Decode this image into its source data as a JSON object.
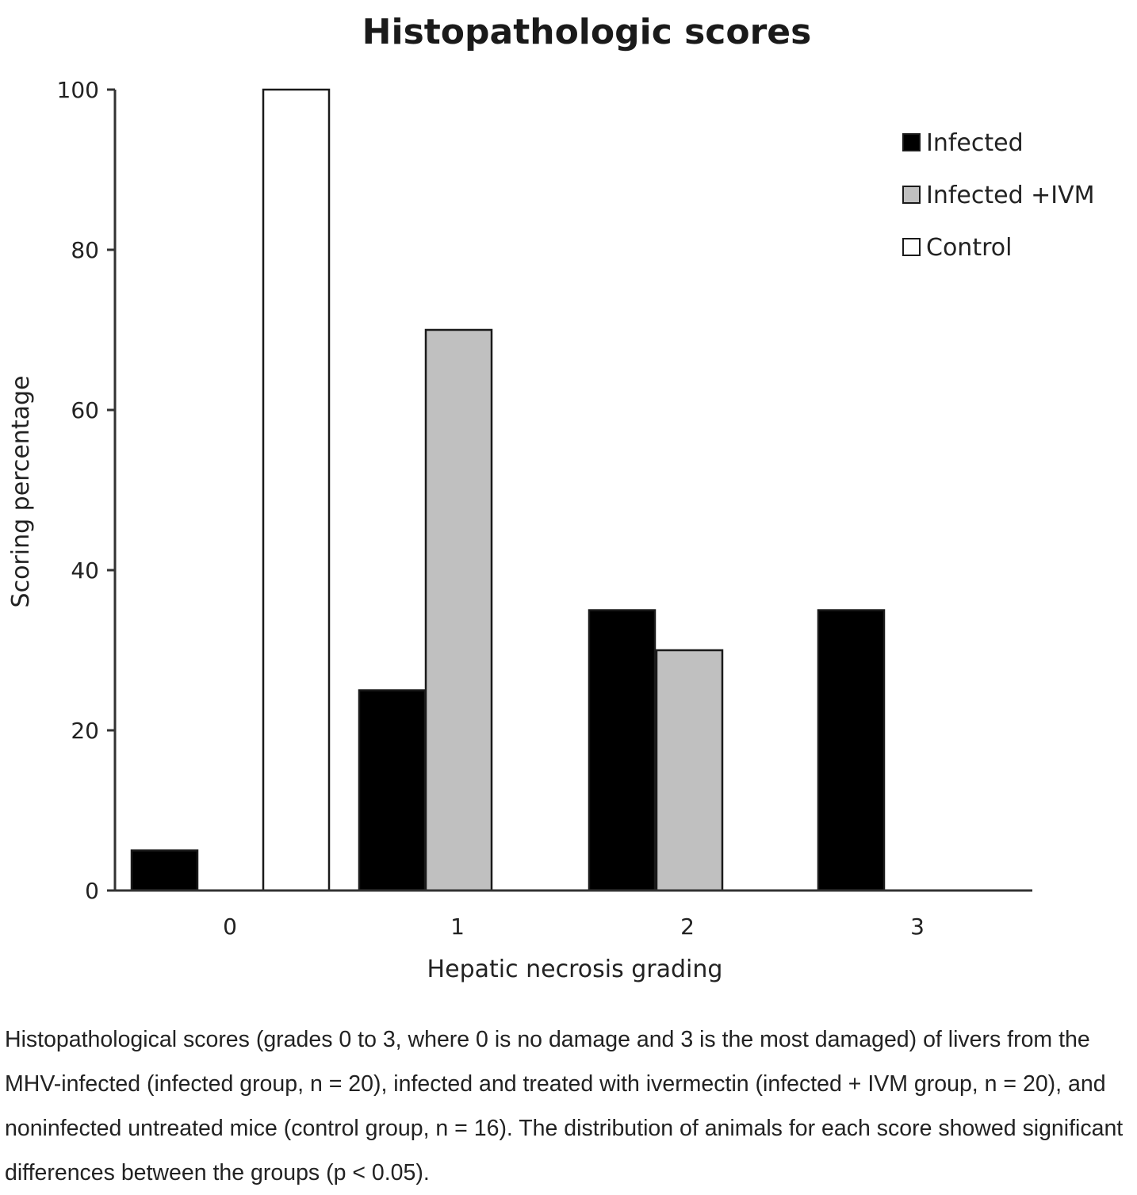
{
  "chart_data": {
    "type": "bar",
    "title": "Histopathologic scores",
    "xlabel": "Hepatic necrosis grading",
    "ylabel": "Scoring percentage",
    "categories": [
      "0",
      "1",
      "2",
      "3"
    ],
    "ylim": [
      0,
      100
    ],
    "yticks": [
      "0",
      "20",
      "40",
      "60",
      "80",
      "100"
    ],
    "series": [
      {
        "name": "Infected",
        "color": "#000000",
        "values": [
          5,
          25,
          35,
          35
        ]
      },
      {
        "name": "Infected +IVM",
        "color": "#c0c0c0",
        "values": [
          0,
          70,
          30,
          0
        ]
      },
      {
        "name": "Control",
        "color": "#ffffff",
        "values": [
          100,
          0,
          0,
          0
        ]
      }
    ],
    "legend_position": "top-right",
    "grid": false
  },
  "caption": "Histopathological scores (grades 0 to 3, where 0 is no damage and 3 is the most damaged) of livers from the MHV-infected (infected group, n = 20), infected and treated with ivermectin (infected + IVM group, n = 20), and noninfected untreated mice (control group, n = 16). The distribution of animals for each score showed significant differences between the groups (p < 0.05)."
}
